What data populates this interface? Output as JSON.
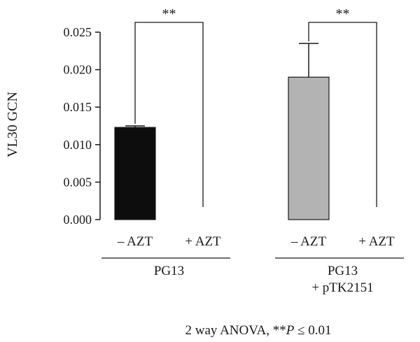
{
  "chart_data": {
    "type": "bar",
    "ylabel": "VL30 GCN",
    "ylim": [
      0,
      0.025
    ],
    "yticks": [
      "0.000",
      "0.005",
      "0.010",
      "0.015",
      "0.020",
      "0.025"
    ],
    "grid": false,
    "categories": [
      "– AZT",
      "+ AZT",
      "– AZT",
      "+ AZT"
    ],
    "values": [
      0.0123,
      0.0,
      0.019,
      0.0
    ],
    "errors": [
      0.0002,
      0.0,
      0.0045,
      0.0
    ],
    "bar_colors": [
      "#0d0d0d",
      "#0d0d0d",
      "#b3b3b3",
      "#b3b3b3"
    ],
    "groups": [
      {
        "label_lines": [
          "PG13"
        ],
        "bars": [
          0,
          1
        ]
      },
      {
        "label_lines": [
          "PG13",
          "+ pTK2151"
        ],
        "bars": [
          2,
          3
        ]
      }
    ],
    "significance": [
      {
        "from": 0,
        "to": 1,
        "label": "**"
      },
      {
        "from": 2,
        "to": 3,
        "label": "**"
      }
    ],
    "footnote": {
      "prefix": "2 way ANOVA, **",
      "p": "P",
      "suffix": " ≤ 0.01"
    }
  }
}
